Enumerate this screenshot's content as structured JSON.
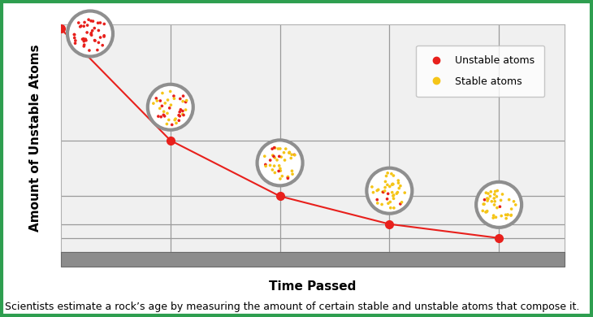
{
  "chart_data": {
    "type": "line",
    "x_label": "Time Passed",
    "y_label": "Amount of Unstable Atoms",
    "caption": "Scientists estimate a rock’s age by measuring the amount of certain stable and unstable atoms that compose it.",
    "x": [
      0,
      1,
      2,
      3,
      4
    ],
    "series": [
      {
        "name": "Unstable atoms",
        "color": "#e8201c",
        "type": "line",
        "marker": "o",
        "values": [
          100,
          50,
          25,
          12.5,
          6.25
        ]
      },
      {
        "name": "Stable atoms",
        "color": "#f5c518",
        "type": "dots",
        "values": [
          0,
          50,
          75,
          87.5,
          93.75
        ]
      }
    ],
    "xlim": [
      0,
      4.6
    ],
    "ylim": [
      0,
      102
    ],
    "xticks": [
      1,
      2,
      3,
      4
    ],
    "yticks": [
      6.25,
      12.5,
      25,
      50
    ],
    "grid": true,
    "legend": "upper right",
    "tick_labels": false
  }
}
